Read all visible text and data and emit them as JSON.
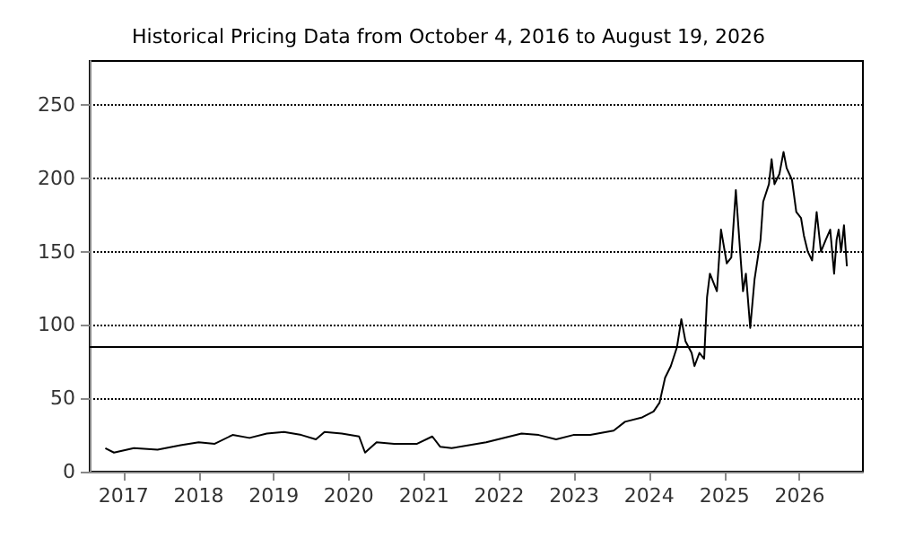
{
  "chart_data": {
    "type": "line",
    "title": "Historical Pricing Data from October 4, 2016 to August 19, 2026",
    "x": [
      "2016-10-04",
      "2016-11-15",
      "2017-02-20",
      "2017-06-15",
      "2017-10-05",
      "2018-01-01",
      "2018-03-20",
      "2018-06-15",
      "2018-09-05",
      "2018-11-28",
      "2019-02-20",
      "2019-05-15",
      "2019-07-25",
      "2019-09-05",
      "2019-11-28",
      "2020-02-20",
      "2020-03-20",
      "2020-05-15",
      "2020-08-08",
      "2020-11-28",
      "2021-02-10",
      "2021-03-20",
      "2021-05-15",
      "2021-10-30",
      "2022-04-20",
      "2022-07-12",
      "2022-10-05",
      "2022-12-28",
      "2023-03-20",
      "2023-07-12",
      "2023-09-05",
      "2023-11-28",
      "2024-01-22",
      "2024-02-20",
      "2024-03-18",
      "2024-04-15",
      "2024-05-15",
      "2024-06-05",
      "2024-06-25",
      "2024-07-25",
      "2024-08-08",
      "2024-09-01",
      "2024-09-24",
      "2024-10-08",
      "2024-10-22",
      "2024-11-25",
      "2024-12-15",
      "2025-01-12",
      "2025-02-03",
      "2025-02-25",
      "2025-03-18",
      "2025-04-01",
      "2025-04-15",
      "2025-05-06",
      "2025-05-27",
      "2025-06-25",
      "2025-07-08",
      "2025-08-05",
      "2025-08-18",
      "2025-09-01",
      "2025-09-25",
      "2025-10-15",
      "2025-10-30",
      "2025-11-25",
      "2025-12-16",
      "2026-01-08",
      "2026-01-22",
      "2026-02-10",
      "2026-03-03",
      "2026-03-25",
      "2026-04-15",
      "2026-05-08",
      "2026-05-30",
      "2026-06-18",
      "2026-06-30",
      "2026-07-10",
      "2026-07-22",
      "2026-08-05",
      "2026-08-19"
    ],
    "values": [
      16,
      13,
      16,
      15,
      18,
      20,
      19,
      25,
      23,
      26,
      27,
      25,
      22,
      27,
      26,
      24,
      13,
      20,
      19,
      19,
      24,
      17,
      16,
      20,
      26,
      25,
      22,
      25,
      25,
      28,
      34,
      37,
      41,
      47,
      64,
      72,
      85,
      104,
      89,
      81,
      72,
      81,
      77,
      119,
      135,
      123,
      165,
      142,
      146,
      192,
      150,
      123,
      135,
      98,
      131,
      158,
      184,
      196,
      213,
      196,
      203,
      218,
      207,
      199,
      177,
      173,
      161,
      150,
      144,
      177,
      150,
      158,
      165,
      135,
      158,
      165,
      150,
      168,
      140
    ],
    "color": "#000000",
    "xlim": [
      "2016-07-20",
      "2026-11-05"
    ],
    "xticks": [
      {
        "value": "2017-01-01",
        "label": "2017"
      },
      {
        "value": "2018-01-01",
        "label": "2018"
      },
      {
        "value": "2019-01-01",
        "label": "2019"
      },
      {
        "value": "2020-01-01",
        "label": "2020"
      },
      {
        "value": "2021-01-01",
        "label": "2021"
      },
      {
        "value": "2022-01-01",
        "label": "2022"
      },
      {
        "value": "2023-01-01",
        "label": "2023"
      },
      {
        "value": "2024-01-01",
        "label": "2024"
      },
      {
        "value": "2025-01-01",
        "label": "2025"
      },
      {
        "value": "2026-01-01",
        "label": "2026"
      }
    ],
    "ylim": [
      0,
      280
    ],
    "yticks": [
      0,
      50,
      100,
      150,
      200,
      250
    ],
    "ref_lines": [
      {
        "axis": "y",
        "value": 85,
        "color": "#000000",
        "line_style": "solid"
      }
    ],
    "grid": "y",
    "marker": "none",
    "line_style": "solid"
  }
}
